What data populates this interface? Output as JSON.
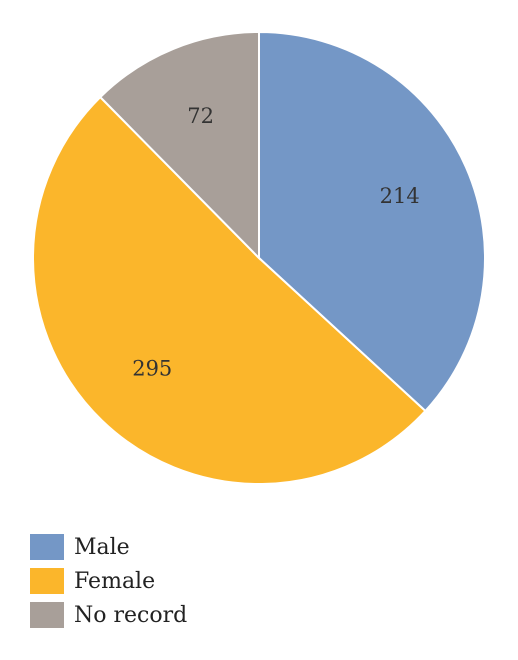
{
  "chart_data": {
    "type": "pie",
    "categories": [
      "Male",
      "Female",
      "No record"
    ],
    "values": [
      214,
      295,
      72
    ],
    "colors": [
      "#7497c6",
      "#fbb62b",
      "#a89f99"
    ],
    "start_angle_deg": 0,
    "direction": "clockwise",
    "data_labels": [
      "214",
      "295",
      "72"
    ],
    "legend_placement": "bottom-left",
    "title": ""
  }
}
